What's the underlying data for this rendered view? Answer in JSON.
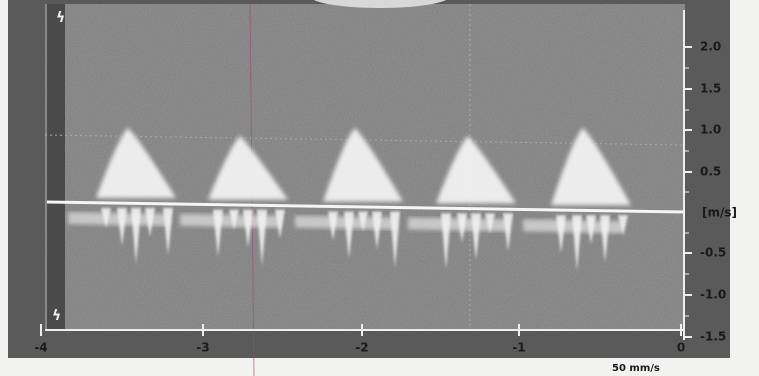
{
  "y_axis": {
    "ticks": [
      "2.0",
      "1.5",
      "1.0",
      "0.5",
      "-0.5",
      "-1.0",
      "-1.5"
    ],
    "unit": "[m/s]"
  },
  "x_axis": {
    "ticks": [
      "-4",
      "-3",
      "-2",
      "-1",
      "0"
    ]
  },
  "sweep_speed": "50 mm/s"
}
